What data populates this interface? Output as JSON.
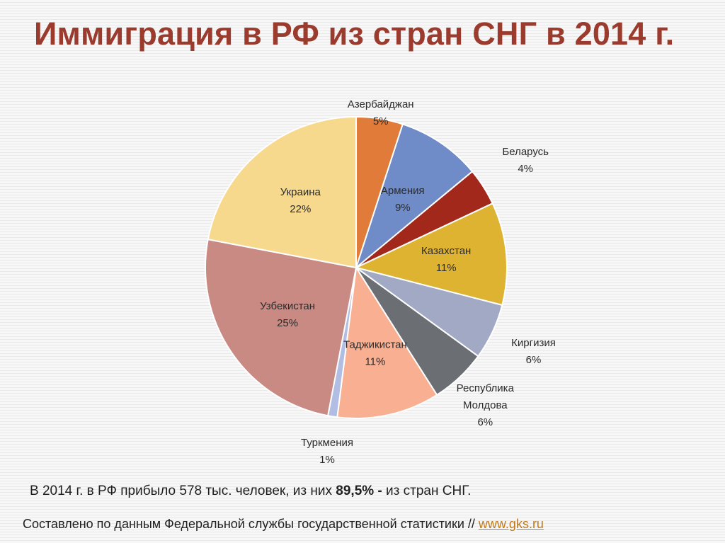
{
  "title": "Иммиграция в РФ из стран СНГ в 2014 г.",
  "chart_data": {
    "type": "pie",
    "title": "",
    "slices": [
      {
        "label": "Азербайджан",
        "value": 5,
        "value_label": "5%",
        "color": "#e07b39"
      },
      {
        "label": "Армения",
        "value": 9,
        "value_label": "9%",
        "color": "#6f8cc9"
      },
      {
        "label": "Беларусь",
        "value": 4,
        "value_label": "4%",
        "color": "#a3281c"
      },
      {
        "label": "Казахстан",
        "value": 11,
        "value_label": "11%",
        "color": "#dfb332"
      },
      {
        "label": "Киргизия",
        "value": 6,
        "value_label": "6%",
        "color": "#a1a9c4"
      },
      {
        "label": "Республика Молдова",
        "label_lines": [
          "Республика",
          "Молдова"
        ],
        "value": 6,
        "value_label": "6%",
        "color": "#6b6e73"
      },
      {
        "label": "Таджикистан",
        "value": 11,
        "value_label": "11%",
        "color": "#f8af92"
      },
      {
        "label": "Туркмения",
        "value": 1,
        "value_label": "1%",
        "color": "#b2bde3"
      },
      {
        "label": "Узбекистан",
        "value": 25,
        "value_label": "25%",
        "color": "#c98a84"
      },
      {
        "label": "Украина",
        "value": 22,
        "value_label": "22%",
        "color": "#f6d98c"
      }
    ],
    "legend": "none",
    "data_labels": "category and percent"
  },
  "summary": {
    "text_before": "В 2014 г. в РФ прибыло 578 тыс. человек, из них ",
    "text_bold": "89,5% -",
    "text_after": " из стран СНГ."
  },
  "source": {
    "text": "Составлено по данным Федеральной службы государственной статистики // ",
    "link_text": "www.gks.ru"
  }
}
